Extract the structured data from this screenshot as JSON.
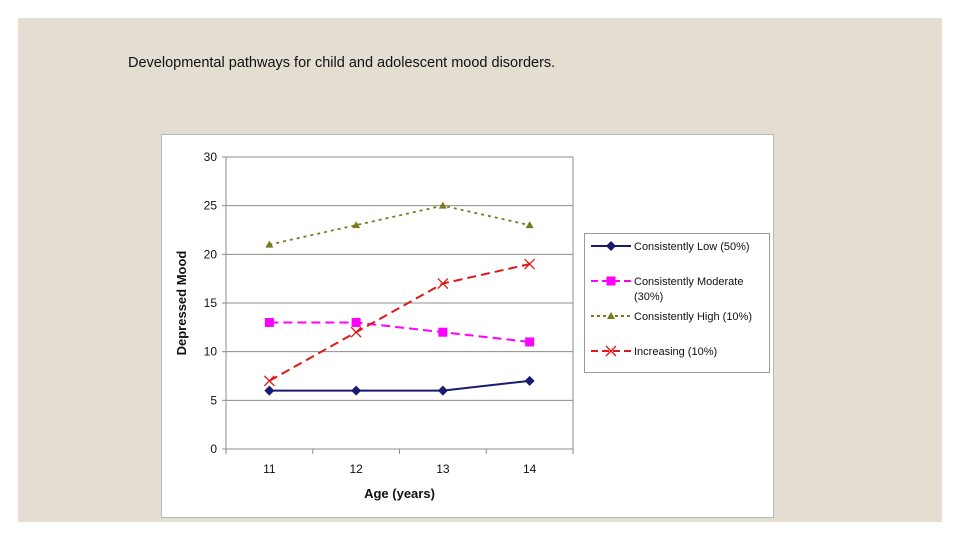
{
  "slide": {
    "title": "Developmental pathways for child and adolescent mood disorders."
  },
  "chart_data": {
    "type": "line",
    "title": "",
    "xlabel": "Age (years)",
    "ylabel": "Depressed Mood",
    "categories": [
      "11",
      "12",
      "13",
      "14"
    ],
    "ylim": [
      0,
      30
    ],
    "yticks": [
      0,
      5,
      10,
      15,
      20,
      25,
      30
    ],
    "grid": true,
    "legend_position": "right",
    "series": [
      {
        "name": "Consistently Low (50%)",
        "values": [
          6,
          6,
          6,
          7
        ],
        "color": "#1a1a6e",
        "marker": "diamond",
        "dash": "solid"
      },
      {
        "name": "Consistently Moderate (30%)",
        "values": [
          13,
          13,
          12,
          11
        ],
        "color": "#ff00ff",
        "marker": "square",
        "dash": "dashed"
      },
      {
        "name": "Consistently High (10%)",
        "values": [
          21,
          23,
          25,
          23
        ],
        "color": "#7a7a1e",
        "marker": "triangle",
        "dash": "dotted"
      },
      {
        "name": "Increasing (10%)",
        "values": [
          7,
          12,
          17,
          19
        ],
        "color": "#e01818",
        "marker": "x",
        "dash": "dashed"
      }
    ]
  }
}
